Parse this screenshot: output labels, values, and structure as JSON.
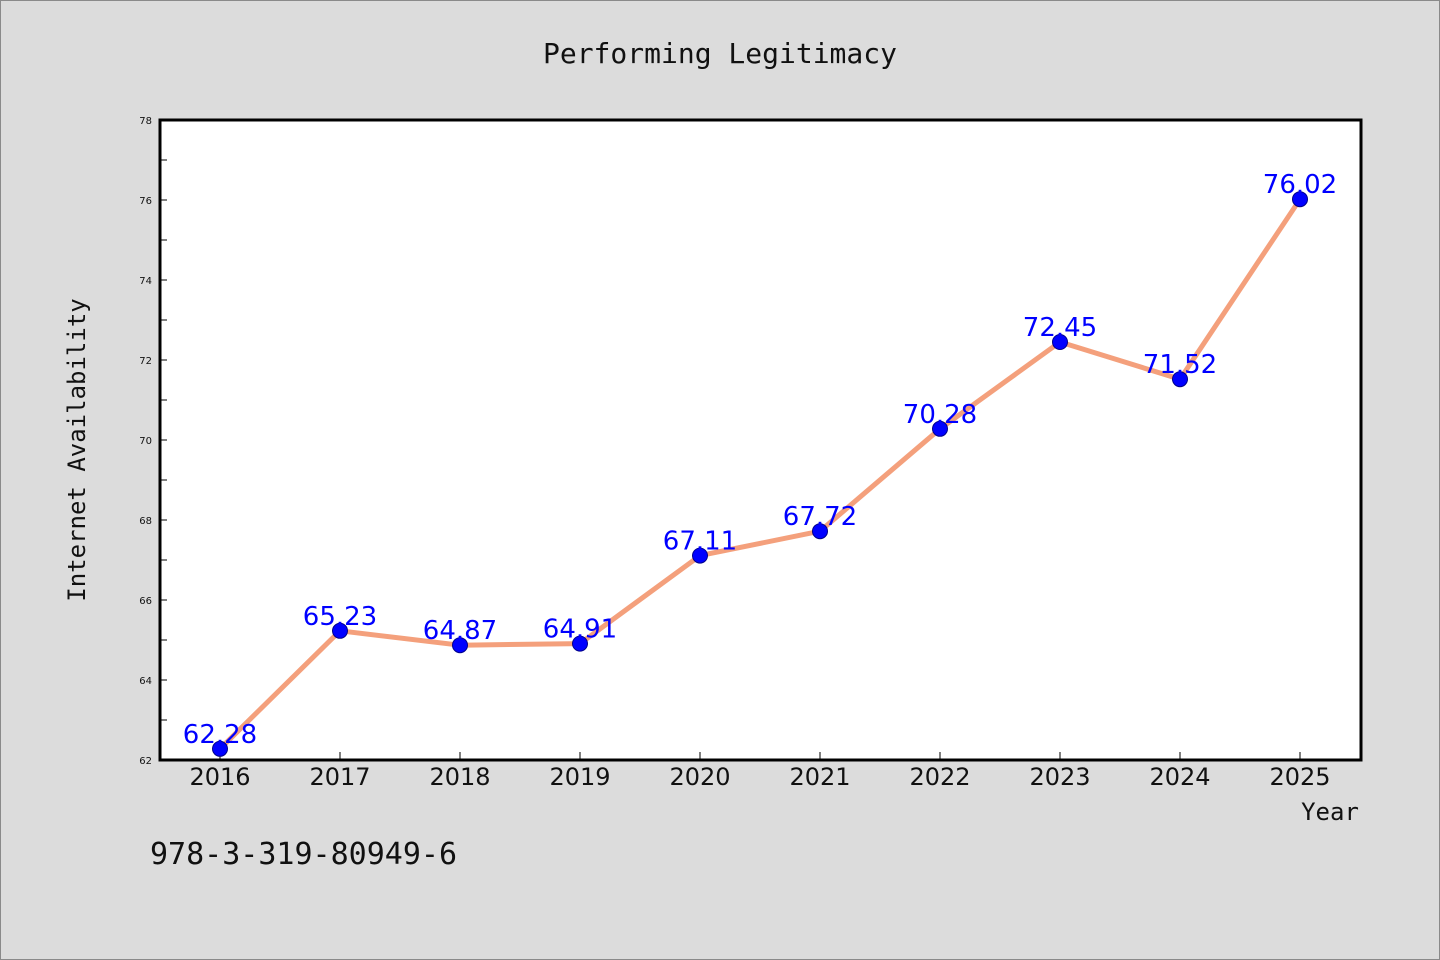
{
  "chart_data": {
    "type": "line",
    "title": "Performing Legitimacy",
    "xlabel": "Year",
    "ylabel": "Internet Availability",
    "categories": [
      "2016",
      "2017",
      "2018",
      "2019",
      "2020",
      "2021",
      "2022",
      "2023",
      "2024",
      "2025"
    ],
    "values": [
      62.28,
      65.23,
      64.87,
      64.91,
      67.11,
      67.72,
      70.28,
      72.45,
      71.52,
      76.02
    ],
    "data_labels": [
      "62.28",
      "65.23",
      "64.87",
      "64.91",
      "67.11",
      "67.72",
      "70.28",
      "72.45",
      "71.52",
      "76.02"
    ],
    "ylim": [
      62,
      78
    ],
    "yticks": [
      "62",
      "64",
      "66",
      "68",
      "70",
      "72",
      "74",
      "76",
      "78"
    ],
    "grid": false,
    "line_color": "#f4a07c",
    "marker_color": "#0000ff",
    "label_color": "#0000ff"
  },
  "footer": {
    "isbn": "978-3-319-80949-6"
  }
}
